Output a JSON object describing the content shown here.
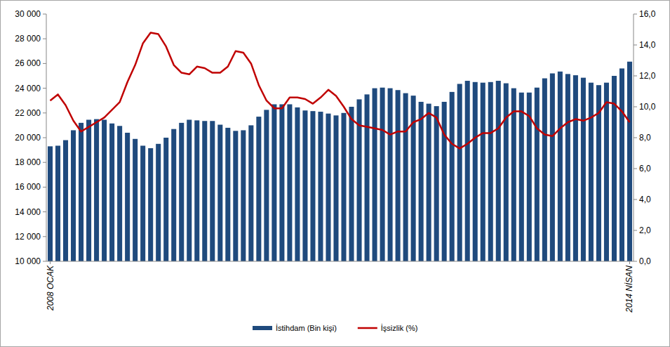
{
  "chart_data": {
    "type": "bar",
    "categories": [
      "2008 OCAK",
      null,
      null,
      null,
      null,
      null,
      null,
      null,
      null,
      null,
      null,
      null,
      null,
      null,
      null,
      null,
      null,
      null,
      null,
      null,
      null,
      null,
      null,
      null,
      null,
      null,
      null,
      null,
      null,
      null,
      null,
      null,
      null,
      null,
      null,
      null,
      null,
      null,
      null,
      null,
      null,
      null,
      null,
      null,
      null,
      null,
      null,
      null,
      null,
      null,
      null,
      null,
      null,
      null,
      null,
      null,
      null,
      null,
      null,
      null,
      null,
      null,
      null,
      null,
      null,
      null,
      null,
      null,
      null,
      null,
      null,
      null,
      null,
      null,
      null,
      "2014 NİSAN"
    ],
    "series": [
      {
        "name": "İstihdam (Bin kişi)",
        "type": "bar",
        "color": "#1f4a7d",
        "values": [
          19300,
          19350,
          19800,
          20600,
          21200,
          21450,
          21500,
          21450,
          21150,
          20950,
          20400,
          19900,
          19350,
          19150,
          19500,
          20000,
          20700,
          21200,
          21450,
          21400,
          21350,
          21350,
          21050,
          20800,
          20550,
          20600,
          21000,
          21700,
          22250,
          22700,
          22700,
          22700,
          22450,
          22200,
          22150,
          22100,
          21950,
          21800,
          22000,
          22500,
          23100,
          23500,
          24000,
          24050,
          24000,
          23850,
          23600,
          23400,
          22900,
          22750,
          22550,
          22900,
          23700,
          24350,
          24600,
          24500,
          24450,
          24500,
          24600,
          24400,
          24000,
          23650,
          23650,
          24050,
          24800,
          25200,
          25350,
          25150,
          25050,
          24850,
          24450,
          24250,
          24450,
          25000,
          25600,
          26150
        ]
      },
      {
        "name": "İşsizlik (%)",
        "type": "line",
        "axis": "y2",
        "color": "#c00000",
        "values": [
          10.4,
          10.8,
          10.1,
          9.1,
          8.4,
          8.7,
          9.0,
          9.3,
          9.8,
          10.3,
          11.6,
          12.7,
          14.1,
          14.8,
          14.7,
          13.9,
          12.7,
          12.2,
          12.1,
          12.6,
          12.5,
          12.2,
          12.2,
          12.6,
          13.6,
          13.5,
          12.8,
          11.4,
          10.4,
          9.9,
          9.9,
          10.6,
          10.6,
          10.5,
          10.2,
          10.6,
          11.1,
          10.7,
          10.0,
          9.2,
          8.8,
          8.7,
          8.6,
          8.5,
          8.2,
          8.4,
          8.4,
          9.0,
          9.2,
          9.6,
          9.3,
          8.2,
          7.6,
          7.3,
          7.6,
          8.0,
          8.3,
          8.3,
          8.6,
          9.3,
          9.7,
          9.7,
          9.4,
          8.6,
          8.2,
          8.1,
          8.6,
          9.0,
          9.2,
          9.1,
          9.3,
          9.6,
          10.3,
          10.2,
          9.7,
          9.0
        ]
      }
    ],
    "ylim": [
      10000,
      30000
    ],
    "yticks": [
      {
        "value": 10000,
        "label": "10 000"
      },
      {
        "value": 12000,
        "label": "12 000"
      },
      {
        "value": 14000,
        "label": "14 000"
      },
      {
        "value": 16000,
        "label": "16 000"
      },
      {
        "value": 18000,
        "label": "18 000"
      },
      {
        "value": 20000,
        "label": "20 000"
      },
      {
        "value": 22000,
        "label": "22 000"
      },
      {
        "value": 24000,
        "label": "24 000"
      },
      {
        "value": 26000,
        "label": "26 000"
      },
      {
        "value": 28000,
        "label": "28 000"
      },
      {
        "value": 30000,
        "label": "30 000"
      }
    ],
    "y2lim": [
      0,
      16
    ],
    "y2ticks": [
      {
        "value": 0,
        "label": "0,0"
      },
      {
        "value": 2,
        "label": "2,0"
      },
      {
        "value": 4,
        "label": "4,0"
      },
      {
        "value": 6,
        "label": "6,0"
      },
      {
        "value": 8,
        "label": "8,0"
      },
      {
        "value": 10,
        "label": "10,0"
      },
      {
        "value": 12,
        "label": "12,0"
      },
      {
        "value": 14,
        "label": "14,0"
      },
      {
        "value": 16,
        "label": "16,0"
      }
    ],
    "grid": false,
    "legend": "bottom"
  }
}
